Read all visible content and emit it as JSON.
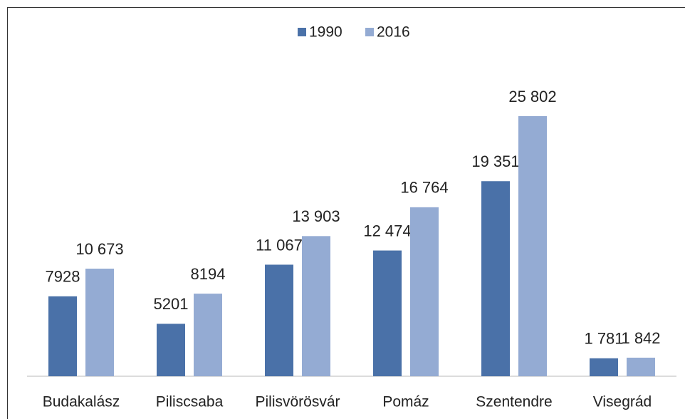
{
  "chart_data": {
    "type": "bar",
    "categories": [
      "Budakalász",
      "Piliscsaba",
      "Pilisvörösvár",
      "Pomáz",
      "Szentendre",
      "Visegrád"
    ],
    "series": [
      {
        "name": "1990",
        "color": "#4a71a8",
        "values": [
          7928,
          5201,
          11067,
          12474,
          19351,
          1781
        ],
        "value_labels": [
          "7928",
          "5201",
          "11 067",
          "12 474",
          "19 351",
          "1 781"
        ]
      },
      {
        "name": "2016",
        "color": "#94abd3",
        "values": [
          10673,
          8194,
          13903,
          16764,
          25802,
          1842
        ],
        "value_labels": [
          "10 673",
          "8194",
          "13 903",
          "16 764",
          "25 802",
          "1 842"
        ]
      }
    ],
    "legend": "top"
  }
}
